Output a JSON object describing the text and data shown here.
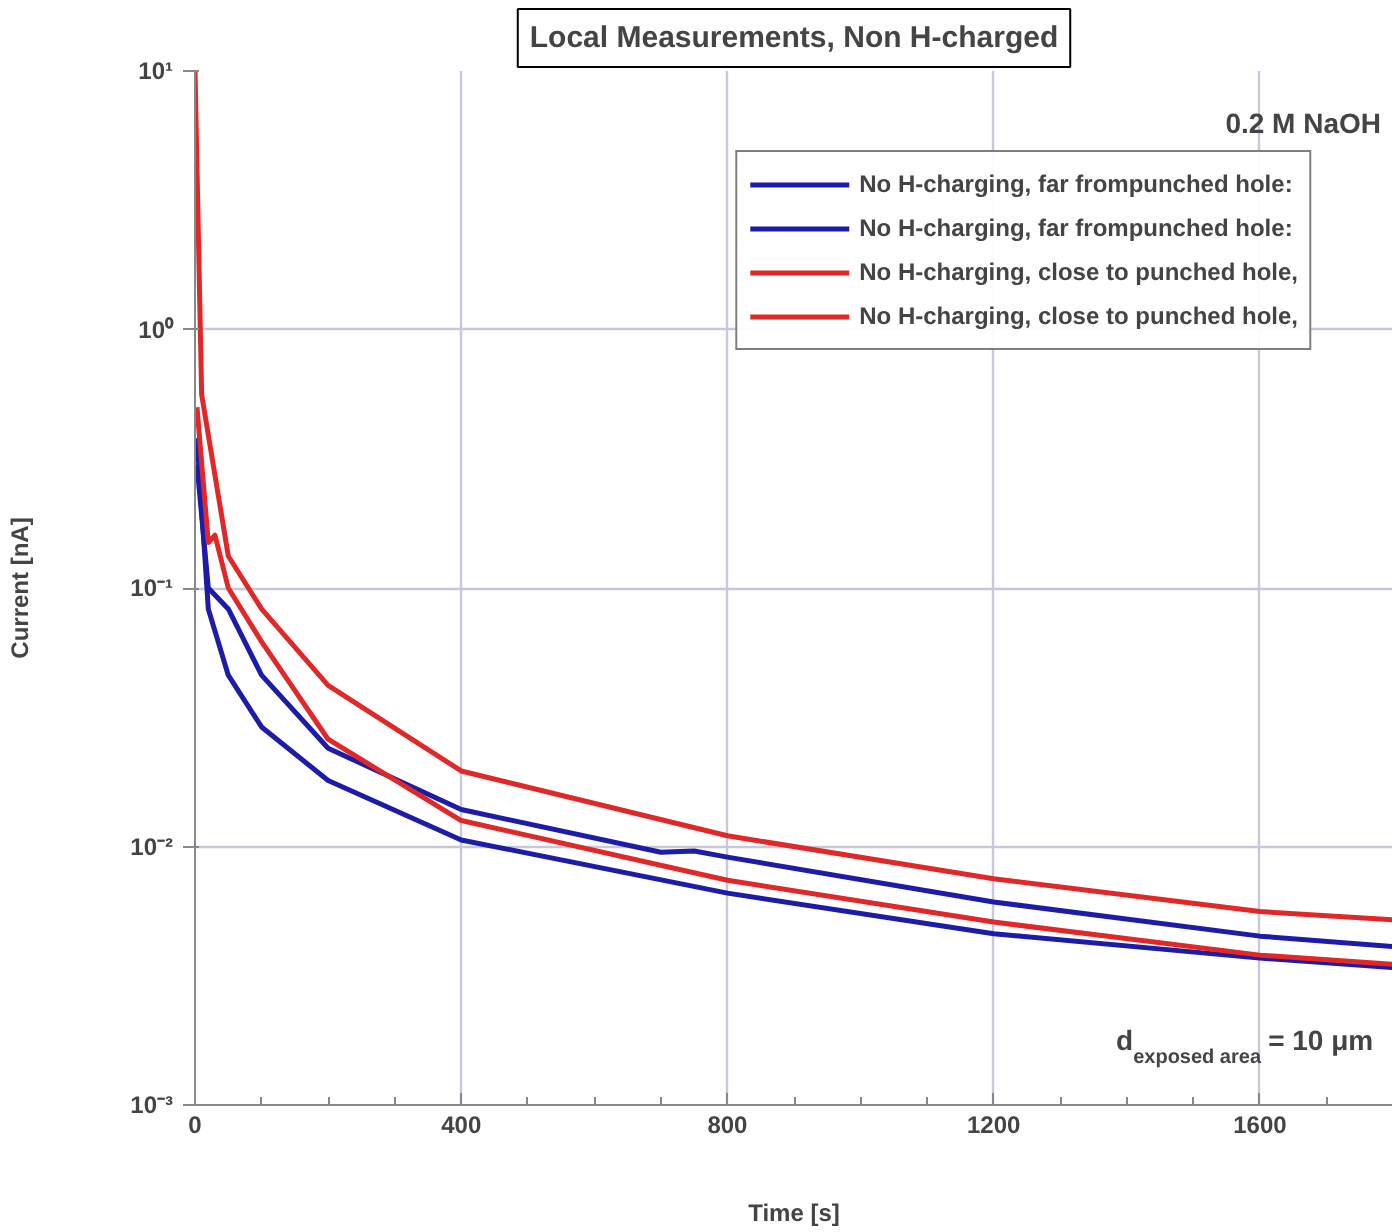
{
  "chart_data": {
    "type": "line",
    "title": "Local Measurements, Non H-charged",
    "xlabel": "Time [s]",
    "ylabel": "Current [nA]",
    "annotations": [
      "0.2 M NaOH",
      "d$_{exposed area}$ = 10 μm"
    ],
    "log": "y",
    "grid": true,
    "legend": "top right",
    "line_style": "solid",
    "marker": "none",
    "xlim": [
      0,
      1800
    ],
    "xticks": [
      0,
      400,
      800,
      1200,
      1600
    ],
    "ylim": [
      0.001,
      10
    ],
    "yticks": [
      {
        "value": 0.001,
        "label": "10⁻³"
      },
      {
        "value": 0.01,
        "label": "10⁻²"
      },
      {
        "value": 0.1,
        "label": "10⁻¹"
      },
      {
        "value": 1,
        "label": "10⁰"
      },
      {
        "value": 10,
        "label": "10¹"
      }
    ],
    "series": [
      {
        "name": "No H-charging, far frompunched hole:",
        "color": "#1c1ca8",
        "x": [
          3,
          20,
          50,
          100,
          200,
          400,
          800,
          1200,
          1600,
          1800
        ],
        "values": [
          0.38,
          0.083,
          0.046,
          0.029,
          0.018,
          0.0106,
          0.0066,
          0.0046,
          0.0037,
          0.0034
        ]
      },
      {
        "name": "No H-charging, far frompunched hole:",
        "color": "#1c1ca8",
        "x": [
          3,
          20,
          50,
          100,
          200,
          400,
          700,
          750,
          800,
          1200,
          1600,
          1800
        ],
        "values": [
          0.3,
          0.1,
          0.083,
          0.046,
          0.024,
          0.0139,
          0.0095,
          0.0096,
          0.0091,
          0.0061,
          0.0045,
          0.0041
        ]
      },
      {
        "name": "No H-charging, close to punched hole,",
        "color": "#e02828",
        "x": [
          0,
          10,
          50,
          100,
          200,
          400,
          800,
          1200,
          1600,
          1800
        ],
        "values": [
          10,
          0.56,
          0.133,
          0.083,
          0.042,
          0.0196,
          0.011,
          0.0075,
          0.0056,
          0.0052
        ]
      },
      {
        "name": "No H-charging, close to punched hole,",
        "color": "#e02828",
        "x": [
          3,
          20,
          30,
          50,
          100,
          200,
          400,
          800,
          1200,
          1600,
          1800
        ],
        "values": [
          0.5,
          0.15,
          0.16,
          0.1,
          0.062,
          0.026,
          0.0126,
          0.0074,
          0.0051,
          0.0038,
          0.0035
        ]
      }
    ]
  }
}
